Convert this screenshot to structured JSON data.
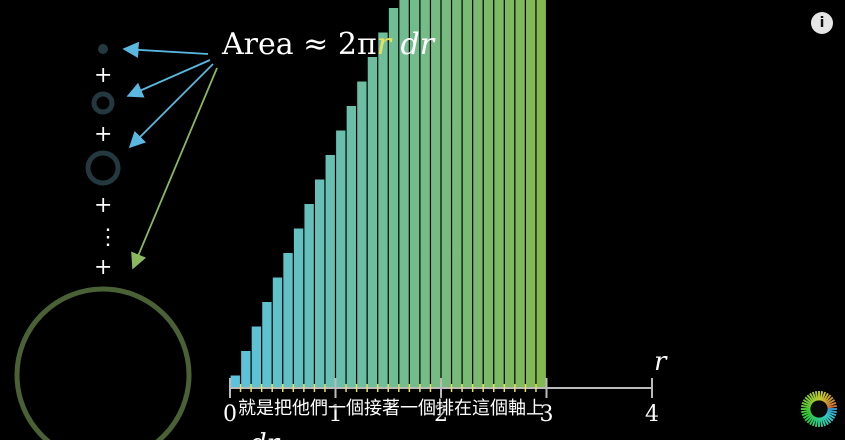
{
  "scene": {
    "formula": {
      "prefix": "Area ≈ 2π",
      "r": "r",
      "suffix": " dr"
    },
    "stack_symbols": [
      "+",
      "+",
      "+",
      "⋮",
      "+"
    ],
    "axis": {
      "var_label": "r",
      "dr_label": "dr",
      "ticks": [
        {
          "value": 0,
          "label": "0"
        },
        {
          "value": 1,
          "label": "1"
        },
        {
          "value": 2,
          "label": "2"
        },
        {
          "value": 3,
          "label": "3"
        },
        {
          "value": 4,
          "label": "4"
        }
      ]
    },
    "colors": {
      "bar_start": "#5bc3df",
      "bar_end": "#83b851",
      "axis": "#bbbbbb",
      "tick_small": "#e8e05a",
      "formula_r": "#e8e05a",
      "arrow_blue": "#5ab8e0",
      "arrow_green": "#8ab85e",
      "ring_small": "#23393f",
      "ring_big": "#4a6136"
    }
  },
  "chart_data": {
    "type": "bar",
    "x_range": [
      0,
      4
    ],
    "bar_width": 0.1,
    "bars_from": 0,
    "bars_to": 3,
    "note_values": "bar heights grow linearly with r (height = 2πr); bars beyond r≈1 are clipped above the frame"
  },
  "subtitle": {
    "text": "就是把他們一個接著一個排在這個軸上"
  },
  "controls": {
    "info_label": "i"
  }
}
